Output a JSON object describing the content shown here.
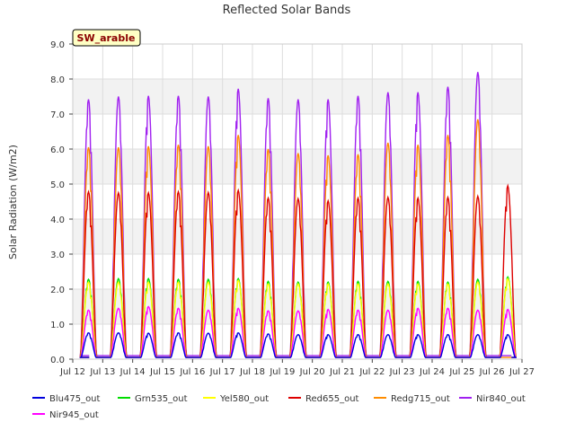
{
  "chart_data": {
    "type": "line",
    "title": "Reflected Solar Bands",
    "ylabel": "Solar Radiation (W/m2)",
    "xlabel": "",
    "annotation": "SW_arable",
    "ylim": [
      0.0,
      9.0
    ],
    "xlim": [
      12,
      27
    ],
    "y_ticks": [
      "0.0",
      "1.0",
      "2.0",
      "3.0",
      "4.0",
      "5.0",
      "6.0",
      "7.0",
      "8.0",
      "9.0"
    ],
    "x_ticks": [
      {
        "day": 12,
        "label": "Jul 12"
      },
      {
        "day": 13,
        "label": "Jul 13"
      },
      {
        "day": 14,
        "label": "Jul 14"
      },
      {
        "day": 15,
        "label": "Jul 15"
      },
      {
        "day": 16,
        "label": "Jul 16"
      },
      {
        "day": 17,
        "label": "Jul 17"
      },
      {
        "day": 18,
        "label": "Jul 18"
      },
      {
        "day": 19,
        "label": "Jul 19"
      },
      {
        "day": 20,
        "label": "Jul 20"
      },
      {
        "day": 21,
        "label": "Jul 21"
      },
      {
        "day": 22,
        "label": "Jul 22"
      },
      {
        "day": 23,
        "label": "Jul 23"
      },
      {
        "day": 24,
        "label": "Jul 24"
      },
      {
        "day": 25,
        "label": "Jul 25"
      },
      {
        "day": 26,
        "label": "Jul 26"
      },
      {
        "day": 27,
        "label": "Jul 27"
      }
    ],
    "grid": true,
    "background_bands": true,
    "legend_position": "bottom",
    "days": [
      12,
      13,
      14,
      15,
      16,
      17,
      18,
      19,
      20,
      21,
      22,
      23,
      24,
      25,
      26
    ],
    "series": [
      {
        "name": "Blu475_out",
        "color": "#0000dd",
        "baseline": 0.05,
        "daily_peaks": [
          0.75,
          0.75,
          0.74,
          0.75,
          0.74,
          0.75,
          0.72,
          0.7,
          0.7,
          0.7,
          0.7,
          0.7,
          0.7,
          0.7,
          0.7
        ]
      },
      {
        "name": "Grn535_out",
        "color": "#00dd00",
        "baseline": 0.05,
        "daily_peaks": [
          2.28,
          2.3,
          2.3,
          2.28,
          2.28,
          2.3,
          2.22,
          2.2,
          2.2,
          2.22,
          2.22,
          2.22,
          2.2,
          2.28,
          2.35
        ]
      },
      {
        "name": "Yel580_out",
        "color": "#ffff00",
        "baseline": 0.05,
        "daily_peaks": [
          2.2,
          2.2,
          2.2,
          2.2,
          2.2,
          2.25,
          2.15,
          2.15,
          2.15,
          2.15,
          2.15,
          2.15,
          2.15,
          2.2,
          2.3
        ]
      },
      {
        "name": "Red655_out",
        "color": "#dd0000",
        "baseline": 0.05,
        "daily_peaks": [
          4.78,
          4.75,
          4.75,
          4.78,
          4.76,
          4.82,
          4.6,
          4.58,
          4.52,
          4.6,
          4.62,
          4.6,
          4.62,
          4.65,
          4.95
        ]
      },
      {
        "name": "Redg715_out",
        "color": "#ff8c00",
        "baseline": 0.05,
        "daily_peaks": [
          6.05,
          6.05,
          6.08,
          6.12,
          6.08,
          6.4,
          6.0,
          5.88,
          5.82,
          5.85,
          6.18,
          6.12,
          6.4,
          6.85,
          0
        ]
      },
      {
        "name": "Nir840_out",
        "color": "#a020f0",
        "baseline": 0.1,
        "daily_peaks": [
          7.42,
          7.5,
          7.52,
          7.52,
          7.5,
          7.72,
          7.45,
          7.42,
          7.42,
          7.52,
          7.62,
          7.62,
          7.78,
          8.2,
          0
        ]
      },
      {
        "name": "Nir945_out",
        "color": "#ff00ff",
        "baseline": 0.05,
        "daily_peaks": [
          1.4,
          1.45,
          1.5,
          1.45,
          1.4,
          1.45,
          1.38,
          1.38,
          1.42,
          1.4,
          1.4,
          1.45,
          1.45,
          1.4,
          1.42
        ]
      }
    ]
  }
}
